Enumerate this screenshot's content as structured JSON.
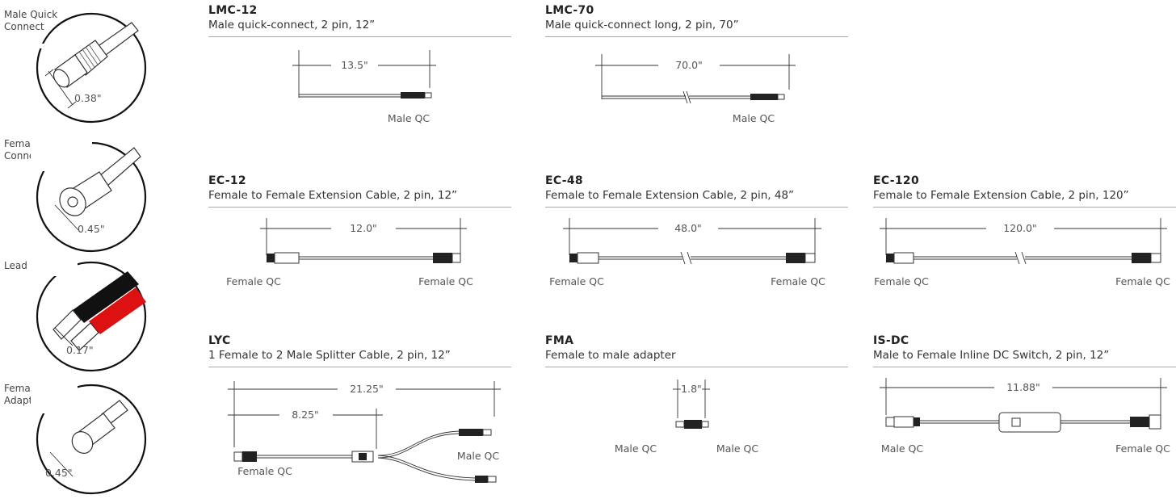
{
  "connectors": [
    {
      "label_line1": "Male Quick",
      "label_line2": "Connect",
      "dimension": "0.38\""
    },
    {
      "label_line1": "Female Quick",
      "label_line2": "Connect",
      "dimension": "0.45\""
    },
    {
      "label_line1": "Lead Wires",
      "label_line2": "",
      "dimension": "0.17\""
    },
    {
      "label_line1": "Female/Male",
      "label_line2": "Adapter",
      "dimension": "0.45\""
    }
  ],
  "products": {
    "lmc12": {
      "code": "LMC-12",
      "desc": "Male quick-connect, 2 pin, 12”",
      "length": "13.5\"",
      "end_right": "Male QC"
    },
    "lmc70": {
      "code": "LMC-70",
      "desc": "Male quick-connect long, 2 pin, 70”",
      "length": "70.0\"",
      "end_right": "Male QC"
    },
    "ec12": {
      "code": "EC-12",
      "desc": "Female to Female Extension Cable, 2 pin, 12”",
      "length": "12.0\"",
      "end_left": "Female QC",
      "end_right": "Female QC"
    },
    "ec48": {
      "code": "EC-48",
      "desc": "Female to Female Extension Cable, 2 pin, 48”",
      "length": "48.0\"",
      "end_left": "Female QC",
      "end_right": "Female QC"
    },
    "ec120": {
      "code": "EC-120",
      "desc": "Female to Female Extension Cable, 2 pin, 120”",
      "length": "120.0\"",
      "end_left": "Female QC",
      "end_right": "Female QC"
    },
    "lyc": {
      "code": "LYC",
      "desc": "1 Female to 2 Male Splitter Cable, 2 pin, 12”",
      "length": "21.25\"",
      "length2": "8.25\"",
      "end_left": "Female QC",
      "end_right": "Male QC"
    },
    "fma": {
      "code": "FMA",
      "desc": "Female to male adapter",
      "length": "1.8\"",
      "end_left": "Male QC",
      "end_right": "Male QC"
    },
    "isdc": {
      "code": "IS-DC",
      "desc": "Male to Female Inline DC Switch, 2 pin, 12”",
      "length": "11.88\"",
      "end_left": "Male QC",
      "end_right": "Female QC"
    }
  }
}
